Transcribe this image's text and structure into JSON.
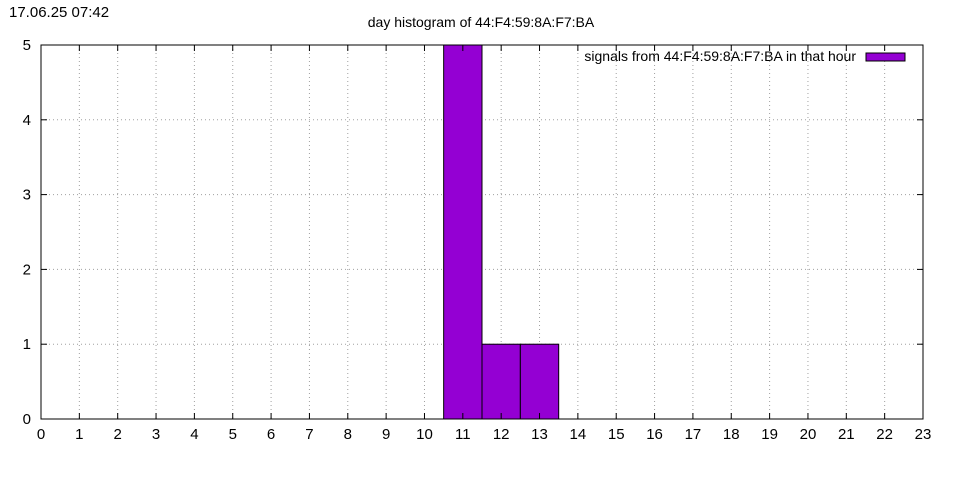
{
  "header": {
    "timestamp": "17.06.25 07:42"
  },
  "colors": {
    "bar": "#9400D3",
    "grid": "#a0a0a0",
    "axis": "#000000"
  },
  "chart_data": {
    "type": "bar",
    "title": "day histogram of 44:F4:59:8A:F7:BA",
    "xlabel": "",
    "ylabel": "",
    "x_ticks": [
      0,
      1,
      2,
      3,
      4,
      5,
      6,
      7,
      8,
      9,
      10,
      11,
      12,
      13,
      14,
      15,
      16,
      17,
      18,
      19,
      20,
      21,
      22,
      23
    ],
    "y_ticks": [
      0,
      1,
      2,
      3,
      4,
      5
    ],
    "xlim": [
      0,
      23
    ],
    "ylim": [
      0,
      5
    ],
    "grid": true,
    "legend_position": "top-right",
    "series": [
      {
        "name": "signals from 44:F4:59:8A:F7:BA in that hour",
        "x": [
          11,
          12,
          13
        ],
        "values": [
          5,
          1,
          1
        ]
      }
    ]
  }
}
